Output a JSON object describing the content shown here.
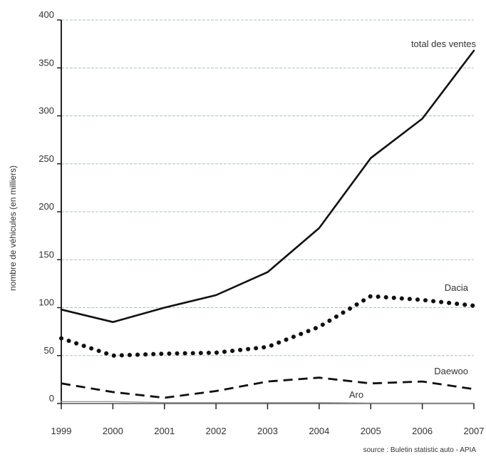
{
  "chart_data": {
    "type": "line",
    "title": "",
    "xlabel": "",
    "ylabel": "nombre de véhicules (en milliers)",
    "x": [
      "1999",
      "2000",
      "2001",
      "2002",
      "2003",
      "2004",
      "2005",
      "2006",
      "2007"
    ],
    "ylim": [
      0,
      400
    ],
    "yticks": [
      "0",
      "50",
      "100",
      "150",
      "200",
      "250",
      "300",
      "350",
      "400"
    ],
    "grid": "horizontal",
    "source": "source : Buletin statistic auto - APIA",
    "series": [
      {
        "name": "total des ventes",
        "style": "solid",
        "color": "#111111",
        "values": [
          98,
          85,
          100,
          113,
          137,
          183,
          256,
          297,
          368
        ]
      },
      {
        "name": "Dacia",
        "style": "dotted",
        "color": "#111111",
        "values": [
          68,
          50,
          52,
          53,
          59,
          80,
          112,
          108,
          102
        ]
      },
      {
        "name": "Daewoo",
        "style": "dashed",
        "color": "#111111",
        "values": [
          21,
          12,
          6,
          13,
          23,
          27,
          21,
          23,
          15
        ]
      },
      {
        "name": "Aro",
        "style": "thin",
        "color": "#999999",
        "values": [
          2,
          2,
          1,
          1,
          1,
          1,
          0.5,
          0.5,
          0.5
        ]
      }
    ]
  }
}
